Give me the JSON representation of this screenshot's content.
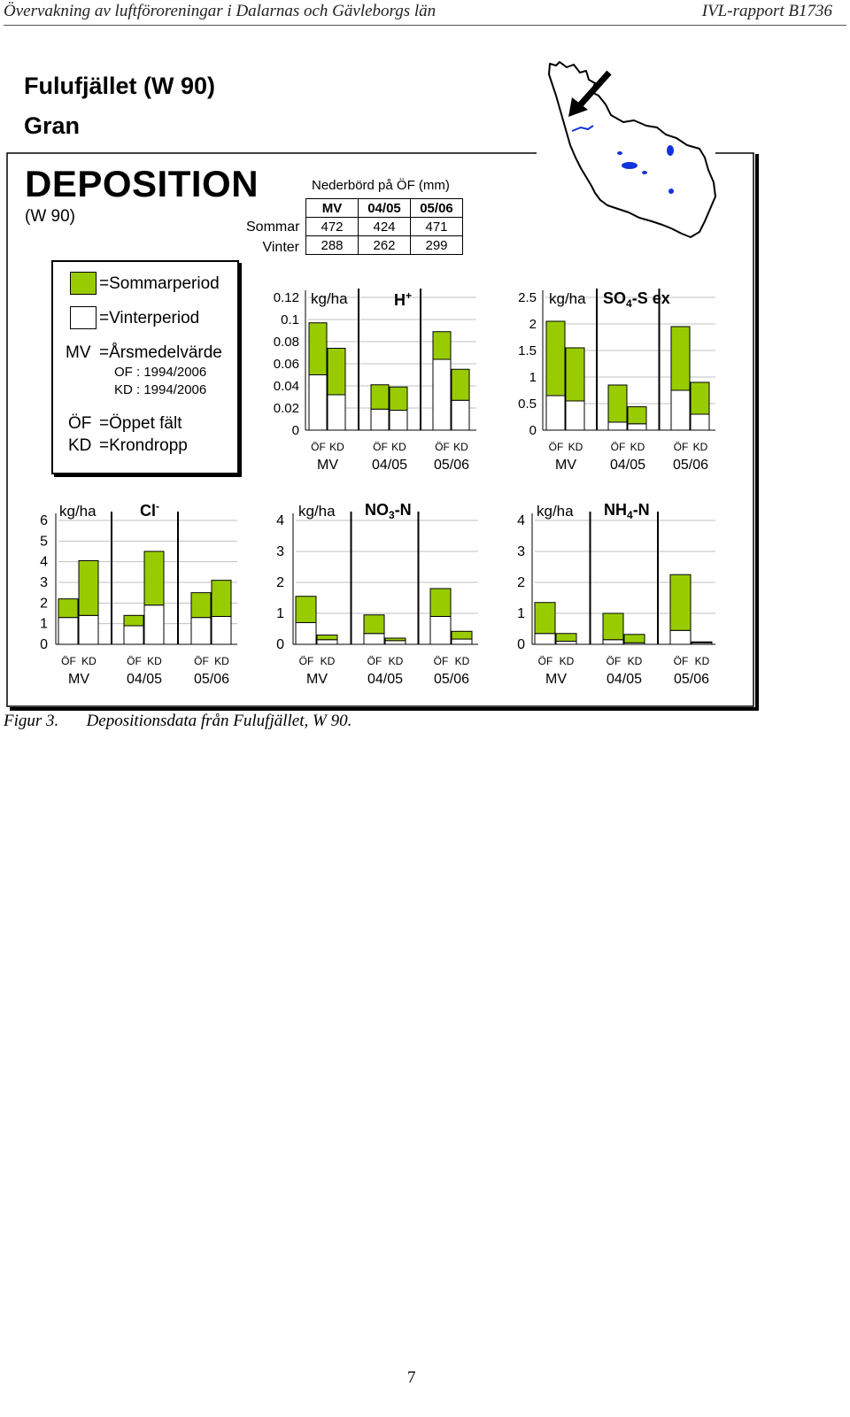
{
  "header": {
    "left": "Övervakning av luftföroreningar i Dalarnas och Gävleborgs län",
    "right": "IVL-rapport B1736"
  },
  "site": {
    "title": "Fulufjället (W 90)",
    "subtitle": "Gran"
  },
  "deposition": {
    "title": "DEPOSITION",
    "code": "(W 90)"
  },
  "precip": {
    "caption": "Nederbörd på ÖF (mm)",
    "columns": [
      "MV",
      "04/05",
      "05/06"
    ],
    "rows": [
      {
        "label": "Sommar",
        "values": [
          "472",
          "424",
          "471"
        ]
      },
      {
        "label": "Vinter",
        "values": [
          "288",
          "262",
          "299"
        ]
      }
    ]
  },
  "legend": {
    "summer": "=Sommarperiod",
    "winter": "=Vinterperiod",
    "mv_key": "MV",
    "mv_text": "=Årsmedelvärde",
    "of_range": "OF : 1994/2006",
    "kd_range": "KD : 1994/2006",
    "of_key": "ÖF",
    "of_text": "=Öppet fält",
    "kd_key": "KD",
    "kd_text": "=Krondropp"
  },
  "colors": {
    "summer": "#99cc00",
    "winter": "#ffffff",
    "grid": "#c0c0c0"
  },
  "map": {
    "icon": "map-icon",
    "arrow": "arrow-icon"
  },
  "caption": {
    "label": "Figur 3.",
    "text": "Depositionsdata från Fulufjället, W 90."
  },
  "page_number": "7",
  "chart_data": [
    {
      "type": "bar",
      "stacked": true,
      "title": "H",
      "title_sup": "+",
      "title_sub": "",
      "ylabel": "kg/ha",
      "ylim": [
        0,
        0.12
      ],
      "yticks": [
        "0",
        "0.02",
        "0.04",
        "0.06",
        "0.08",
        "0.1",
        "0.12"
      ],
      "groups": [
        "MV",
        "04/05",
        "05/06"
      ],
      "bar_labels": [
        "ÖF",
        "KD"
      ],
      "series": [
        {
          "name": "Vinterperiod",
          "values": [
            [
              0.05,
              0.032
            ],
            [
              0.019,
              0.018
            ],
            [
              0.064,
              0.027
            ]
          ]
        },
        {
          "name": "Sommarperiod",
          "values": [
            [
              0.047,
              0.042
            ],
            [
              0.022,
              0.021
            ],
            [
              0.025,
              0.028
            ]
          ]
        }
      ]
    },
    {
      "type": "bar",
      "stacked": true,
      "title": "SO",
      "title_sub": "4",
      "title_tail": "-S ex",
      "title_sup": "",
      "ylabel": "kg/ha",
      "ylim": [
        0,
        2.5
      ],
      "yticks": [
        "0",
        "0.5",
        "1",
        "1.5",
        "2",
        "2.5"
      ],
      "groups": [
        "MV",
        "04/05",
        "05/06"
      ],
      "bar_labels": [
        "ÖF",
        "KD"
      ],
      "series": [
        {
          "name": "Vinterperiod",
          "values": [
            [
              0.65,
              0.55
            ],
            [
              0.15,
              0.12
            ],
            [
              0.75,
              0.3
            ]
          ]
        },
        {
          "name": "Sommarperiod",
          "values": [
            [
              1.4,
              1.0
            ],
            [
              0.7,
              0.32
            ],
            [
              1.2,
              0.6
            ]
          ]
        }
      ]
    },
    {
      "type": "bar",
      "stacked": true,
      "title": "Cl",
      "title_sup": "-",
      "title_sub": "",
      "ylabel": "kg/ha",
      "ylim": [
        0,
        6
      ],
      "yticks": [
        "0",
        "1",
        "2",
        "3",
        "4",
        "5",
        "6"
      ],
      "groups": [
        "MV",
        "04/05",
        "05/06"
      ],
      "bar_labels": [
        "ÖF",
        "KD"
      ],
      "series": [
        {
          "name": "Vinterperiod",
          "values": [
            [
              1.3,
              1.4
            ],
            [
              0.9,
              1.9
            ],
            [
              1.3,
              1.35
            ]
          ]
        },
        {
          "name": "Sommarperiod",
          "values": [
            [
              0.9,
              2.65
            ],
            [
              0.5,
              2.6
            ],
            [
              1.2,
              1.75
            ]
          ]
        }
      ]
    },
    {
      "type": "bar",
      "stacked": true,
      "title": "NO",
      "title_sub": "3",
      "title_tail": "-N",
      "title_sup": "",
      "ylabel": "kg/ha",
      "ylim": [
        0,
        4
      ],
      "yticks": [
        "0",
        "1",
        "2",
        "3",
        "4"
      ],
      "groups": [
        "MV",
        "04/05",
        "05/06"
      ],
      "bar_labels": [
        "ÖF",
        "KD"
      ],
      "series": [
        {
          "name": "Vinterperiod",
          "values": [
            [
              0.7,
              0.15
            ],
            [
              0.35,
              0.12
            ],
            [
              0.9,
              0.17
            ]
          ]
        },
        {
          "name": "Sommarperiod",
          "values": [
            [
              0.85,
              0.15
            ],
            [
              0.6,
              0.08
            ],
            [
              0.9,
              0.25
            ]
          ]
        }
      ]
    },
    {
      "type": "bar",
      "stacked": true,
      "title": "NH",
      "title_sub": "4",
      "title_tail": "-N",
      "title_sup": "",
      "ylabel": "kg/ha",
      "ylim": [
        0,
        4
      ],
      "yticks": [
        "0",
        "1",
        "2",
        "3",
        "4"
      ],
      "groups": [
        "MV",
        "04/05",
        "05/06"
      ],
      "bar_labels": [
        "ÖF",
        "KD"
      ],
      "series": [
        {
          "name": "Vinterperiod",
          "values": [
            [
              0.35,
              0.1
            ],
            [
              0.15,
              0.05
            ],
            [
              0.45,
              0.05
            ]
          ]
        },
        {
          "name": "Sommarperiod",
          "values": [
            [
              1.0,
              0.25
            ],
            [
              0.85,
              0.27
            ],
            [
              1.8,
              0.03
            ]
          ]
        }
      ]
    }
  ]
}
